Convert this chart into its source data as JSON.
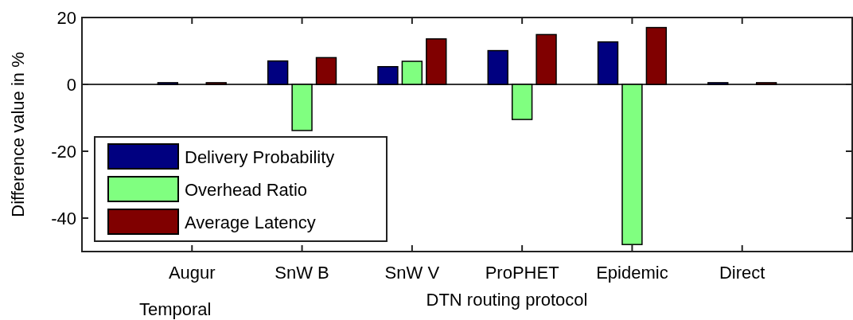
{
  "chart_data": {
    "type": "bar",
    "xlabel": "DTN routing protocol",
    "ylabel": "Difference value in %",
    "categories": [
      "Augur",
      "SnW B",
      "SnW V",
      "ProPHET",
      "Epidemic",
      "Direct"
    ],
    "series": [
      {
        "name": "Delivery Probability",
        "color": "#000080",
        "values": [
          0.5,
          7,
          5.3,
          10.1,
          12.7,
          0.5
        ]
      },
      {
        "name": "Overhead Ratio",
        "color": "#80ff80",
        "values": [
          0,
          -13.8,
          6.9,
          -10.5,
          -47.9,
          0
        ]
      },
      {
        "name": "Average Latency",
        "color": "#800000",
        "values": [
          0.5,
          8,
          13.6,
          14.9,
          17,
          0.5
        ]
      }
    ],
    "ylim": [
      -50,
      20
    ],
    "yticks": [
      -40,
      -20,
      0,
      20
    ],
    "grid": false,
    "legend": "bottom left",
    "ref_lines": [
      {
        "axis": "y",
        "value": 0,
        "color": "#333333"
      }
    ],
    "annotations": [
      "Temporal"
    ]
  }
}
